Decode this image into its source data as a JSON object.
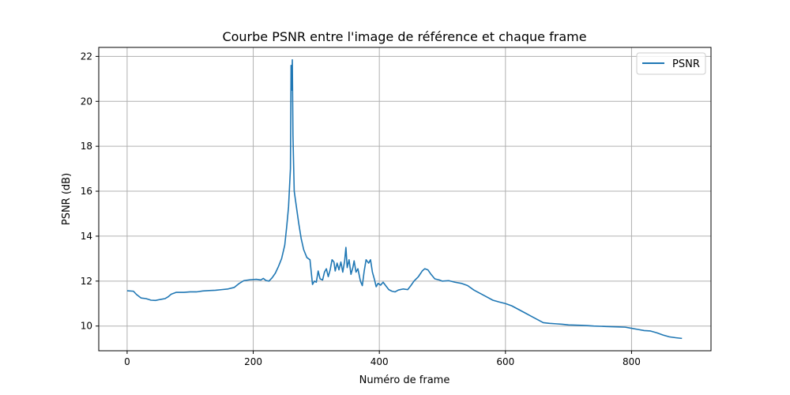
{
  "chart_data": {
    "type": "line",
    "title": "Courbe PSNR entre l'image de référence et chaque frame",
    "xlabel": "Numéro de frame",
    "ylabel": "PSNR (dB)",
    "xlim": [
      -45,
      926
    ],
    "ylim": [
      8.9,
      22.4
    ],
    "xticks": [
      0,
      200,
      400,
      600,
      800
    ],
    "yticks": [
      10,
      12,
      14,
      16,
      18,
      20,
      22
    ],
    "grid": true,
    "legend": "top-right",
    "line_color": "#1f77b4",
    "series": [
      {
        "name": "PSNR",
        "points": [
          [
            0,
            11.57
          ],
          [
            10,
            11.55
          ],
          [
            15,
            11.4
          ],
          [
            22,
            11.25
          ],
          [
            30,
            11.22
          ],
          [
            38,
            11.15
          ],
          [
            45,
            11.14
          ],
          [
            52,
            11.18
          ],
          [
            60,
            11.22
          ],
          [
            65,
            11.3
          ],
          [
            70,
            11.42
          ],
          [
            78,
            11.5
          ],
          [
            90,
            11.5
          ],
          [
            100,
            11.52
          ],
          [
            110,
            11.52
          ],
          [
            120,
            11.56
          ],
          [
            130,
            11.58
          ],
          [
            140,
            11.59
          ],
          [
            150,
            11.62
          ],
          [
            160,
            11.65
          ],
          [
            170,
            11.72
          ],
          [
            178,
            11.9
          ],
          [
            185,
            12.02
          ],
          [
            195,
            12.06
          ],
          [
            205,
            12.08
          ],
          [
            212,
            12.05
          ],
          [
            216,
            12.12
          ],
          [
            220,
            12.03
          ],
          [
            225,
            12.0
          ],
          [
            230,
            12.15
          ],
          [
            235,
            12.35
          ],
          [
            240,
            12.65
          ],
          [
            245,
            13.0
          ],
          [
            250,
            13.6
          ],
          [
            253,
            14.4
          ],
          [
            256,
            15.3
          ],
          [
            259,
            17.0
          ],
          [
            260,
            21.6
          ],
          [
            261,
            20.5
          ],
          [
            262,
            21.85
          ],
          [
            263,
            18.5
          ],
          [
            265,
            16.0
          ],
          [
            268,
            15.4
          ],
          [
            272,
            14.6
          ],
          [
            276,
            13.9
          ],
          [
            280,
            13.4
          ],
          [
            285,
            13.05
          ],
          [
            290,
            12.95
          ],
          [
            292,
            12.4
          ],
          [
            294,
            11.85
          ],
          [
            297,
            12.0
          ],
          [
            300,
            11.95
          ],
          [
            303,
            12.45
          ],
          [
            306,
            12.1
          ],
          [
            310,
            12.05
          ],
          [
            313,
            12.4
          ],
          [
            316,
            12.55
          ],
          [
            319,
            12.2
          ],
          [
            322,
            12.5
          ],
          [
            325,
            12.95
          ],
          [
            328,
            12.85
          ],
          [
            330,
            12.45
          ],
          [
            333,
            12.8
          ],
          [
            336,
            12.5
          ],
          [
            339,
            12.85
          ],
          [
            342,
            12.4
          ],
          [
            345,
            12.9
          ],
          [
            347,
            13.5
          ],
          [
            349,
            12.6
          ],
          [
            352,
            12.95
          ],
          [
            355,
            12.3
          ],
          [
            358,
            12.6
          ],
          [
            360,
            12.9
          ],
          [
            363,
            12.4
          ],
          [
            366,
            12.55
          ],
          [
            370,
            12.0
          ],
          [
            373,
            11.8
          ],
          [
            376,
            12.45
          ],
          [
            379,
            12.95
          ],
          [
            383,
            12.8
          ],
          [
            386,
            12.95
          ],
          [
            389,
            12.4
          ],
          [
            392,
            12.1
          ],
          [
            395,
            11.75
          ],
          [
            398,
            11.9
          ],
          [
            402,
            11.82
          ],
          [
            406,
            11.95
          ],
          [
            410,
            11.8
          ],
          [
            415,
            11.62
          ],
          [
            420,
            11.55
          ],
          [
            425,
            11.52
          ],
          [
            430,
            11.6
          ],
          [
            438,
            11.65
          ],
          [
            445,
            11.62
          ],
          [
            450,
            11.8
          ],
          [
            455,
            12.0
          ],
          [
            462,
            12.2
          ],
          [
            468,
            12.45
          ],
          [
            472,
            12.55
          ],
          [
            477,
            12.5
          ],
          [
            482,
            12.3
          ],
          [
            488,
            12.1
          ],
          [
            495,
            12.05
          ],
          [
            500,
            12.0
          ],
          [
            510,
            12.02
          ],
          [
            520,
            11.95
          ],
          [
            530,
            11.9
          ],
          [
            540,
            11.8
          ],
          [
            550,
            11.6
          ],
          [
            560,
            11.45
          ],
          [
            570,
            11.3
          ],
          [
            580,
            11.15
          ],
          [
            590,
            11.07
          ],
          [
            600,
            11.0
          ],
          [
            610,
            10.9
          ],
          [
            620,
            10.75
          ],
          [
            630,
            10.6
          ],
          [
            640,
            10.45
          ],
          [
            650,
            10.3
          ],
          [
            660,
            10.15
          ],
          [
            670,
            10.12
          ],
          [
            680,
            10.1
          ],
          [
            690,
            10.08
          ],
          [
            700,
            10.05
          ],
          [
            710,
            10.04
          ],
          [
            720,
            10.03
          ],
          [
            730,
            10.02
          ],
          [
            740,
            10.0
          ],
          [
            750,
            9.99
          ],
          [
            760,
            9.98
          ],
          [
            770,
            9.97
          ],
          [
            780,
            9.96
          ],
          [
            790,
            9.95
          ],
          [
            800,
            9.9
          ],
          [
            810,
            9.85
          ],
          [
            820,
            9.8
          ],
          [
            830,
            9.78
          ],
          [
            840,
            9.7
          ],
          [
            850,
            9.6
          ],
          [
            860,
            9.52
          ],
          [
            870,
            9.48
          ],
          [
            880,
            9.45
          ]
        ]
      }
    ]
  }
}
